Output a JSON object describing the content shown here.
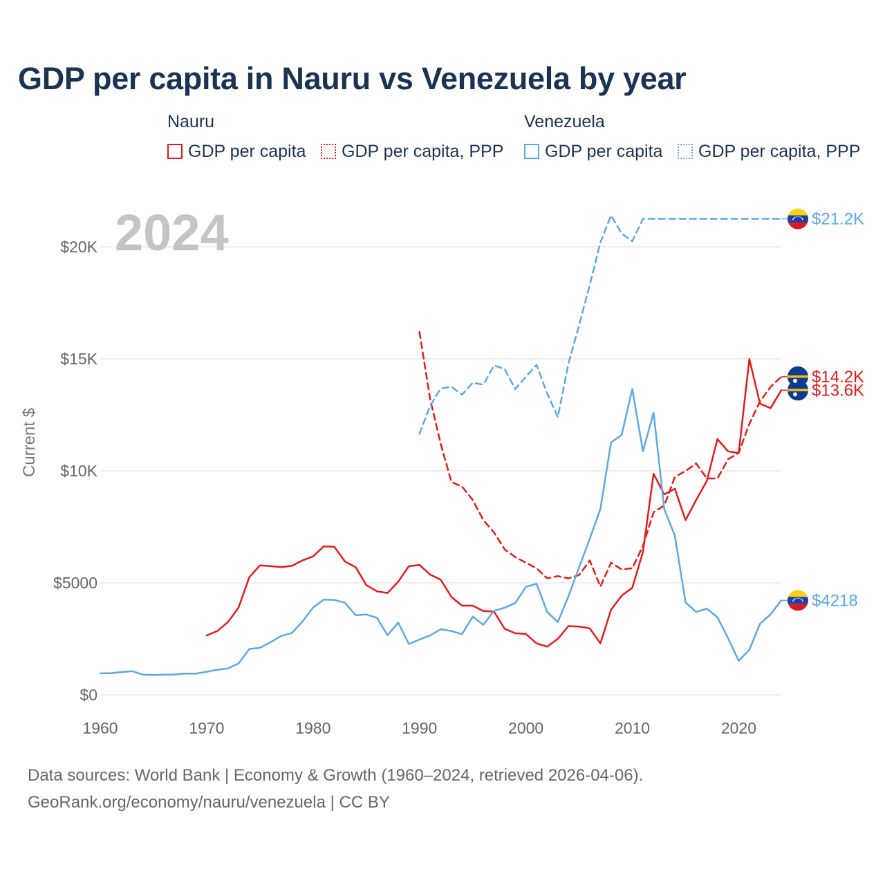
{
  "title": "GDP per capita in Nauru vs Venezuela by year",
  "legend": {
    "groups": [
      {
        "label": "Nauru",
        "items": [
          {
            "label": "GDP per capita",
            "color": "#e8191b",
            "style": "solid"
          },
          {
            "label": "GDP per capita, PPP",
            "color": "#e8191b",
            "style": "dashed"
          }
        ]
      },
      {
        "label": "Venezuela",
        "items": [
          {
            "label": "GDP per capita",
            "color": "#5ea7e6",
            "style": "solid"
          },
          {
            "label": "GDP per capita, PPP",
            "color": "#5ea7e6",
            "style": "dashed"
          }
        ]
      }
    ]
  },
  "footer": {
    "line1": "Data sources: World Bank | Economy & Growth (1960–2024, retrieved 2026-04-06).",
    "line2": "GeoRank.org/economy/nauru/venezuela | CC BY"
  },
  "chart_data": {
    "type": "line",
    "year_watermark": "2024",
    "ylabel": "Current $",
    "xlabel": "",
    "xlim": [
      1960,
      2024
    ],
    "ylim": [
      0,
      20000
    ],
    "x_ticks": [
      1960,
      1970,
      1980,
      1990,
      2000,
      2010,
      2020
    ],
    "y_ticks": [
      {
        "value": 0,
        "label": "$0"
      },
      {
        "value": 5000,
        "label": "$5000"
      },
      {
        "value": 10000,
        "label": "$10K"
      },
      {
        "value": 15000,
        "label": "$15K"
      },
      {
        "value": 20000,
        "label": "$20K"
      }
    ],
    "grid": true,
    "series": [
      {
        "name": "Nauru — GDP per capita",
        "country": "Nauru",
        "metric": "GDP per capita",
        "color": "#e8191b",
        "dashed": false,
        "end_label": "$13.6K",
        "flag": "nauru",
        "label_offset": 0,
        "x": [
          1970,
          1971,
          1972,
          1973,
          1974,
          1975,
          1976,
          1977,
          1978,
          1979,
          1980,
          1981,
          1982,
          1983,
          1984,
          1985,
          1986,
          1987,
          1988,
          1989,
          1990,
          1991,
          1992,
          1993,
          1994,
          1995,
          1996,
          1997,
          1998,
          1999,
          2000,
          2001,
          2002,
          2003,
          2004,
          2005,
          2006,
          2007,
          2008,
          2009,
          2010,
          2011,
          2012,
          2013,
          2014,
          2015,
          2016,
          2017,
          2018,
          2019,
          2020,
          2021,
          2022,
          2023,
          2024
        ],
        "values": [
          2650,
          2850,
          3250,
          3900,
          5250,
          5780,
          5750,
          5700,
          5760,
          6000,
          6180,
          6630,
          6610,
          5950,
          5700,
          4900,
          4620,
          4550,
          5050,
          5740,
          5800,
          5370,
          5140,
          4370,
          3980,
          3980,
          3740,
          3720,
          2950,
          2750,
          2720,
          2300,
          2150,
          2500,
          3070,
          3050,
          2970,
          2300,
          3800,
          4430,
          4780,
          6380,
          9870,
          8950,
          9200,
          7800,
          8700,
          9550,
          11420,
          10870,
          10800,
          14990,
          13000,
          12800,
          13600
        ]
      },
      {
        "name": "Nauru — GDP per capita, PPP",
        "country": "Nauru",
        "metric": "GDP per capita, PPP",
        "color": "#e8191b",
        "dashed": true,
        "end_label": "$14.2K",
        "flag": "nauru",
        "label_offset": 0,
        "x": [
          1990,
          1991,
          1992,
          1993,
          1994,
          1995,
          1996,
          1997,
          1998,
          1999,
          2000,
          2001,
          2002,
          2003,
          2004,
          2005,
          2006,
          2007,
          2008,
          2009,
          2010,
          2011,
          2012,
          2013,
          2014,
          2015,
          2016,
          2017,
          2018,
          2019,
          2020,
          2021,
          2022,
          2023,
          2024
        ],
        "values": [
          16200,
          13200,
          11200,
          9500,
          9300,
          8700,
          7800,
          7250,
          6500,
          6150,
          5900,
          5650,
          5200,
          5300,
          5200,
          5350,
          6000,
          4830,
          5900,
          5600,
          5650,
          6650,
          8150,
          8450,
          9730,
          9990,
          10330,
          9660,
          9660,
          10520,
          10800,
          12100,
          13100,
          13750,
          14200
        ]
      },
      {
        "name": "Venezuela — GDP per capita",
        "country": "Venezuela",
        "metric": "GDP per capita",
        "color": "#5ea7e6",
        "dashed": false,
        "end_label": "$4218",
        "flag": "venezuela",
        "label_offset": 0,
        "x": [
          1960,
          1961,
          1962,
          1963,
          1964,
          1965,
          1966,
          1967,
          1968,
          1969,
          1970,
          1971,
          1972,
          1973,
          1974,
          1975,
          1976,
          1977,
          1978,
          1979,
          1980,
          1981,
          1982,
          1983,
          1984,
          1985,
          1986,
          1987,
          1988,
          1989,
          1990,
          1991,
          1992,
          1993,
          1994,
          1995,
          1996,
          1997,
          1998,
          1999,
          2000,
          2001,
          2002,
          2003,
          2004,
          2005,
          2006,
          2007,
          2008,
          2009,
          2010,
          2011,
          2012,
          2013,
          2014,
          2015,
          2016,
          2017,
          2018,
          2019,
          2020,
          2021,
          2022,
          2023,
          2024
        ],
        "values": [
          960,
          970,
          1020,
          1060,
          900,
          890,
          900,
          910,
          950,
          950,
          1030,
          1120,
          1180,
          1400,
          2050,
          2100,
          2350,
          2630,
          2760,
          3270,
          3900,
          4250,
          4240,
          4110,
          3560,
          3590,
          3440,
          2660,
          3230,
          2270,
          2470,
          2650,
          2930,
          2850,
          2710,
          3490,
          3130,
          3750,
          3890,
          4100,
          4820,
          4960,
          3700,
          3250,
          4400,
          5690,
          6970,
          8300,
          11270,
          11600,
          13660,
          10870,
          12600,
          8300,
          7100,
          4130,
          3700,
          3850,
          3460,
          2530,
          1520,
          2010,
          3170,
          3600,
          4218
        ]
      },
      {
        "name": "Venezuela — GDP per capita, PPP",
        "country": "Venezuela",
        "metric": "GDP per capita, PPP",
        "color": "#5ea7e6",
        "dashed": true,
        "end_label": "$21.2K",
        "flag": "venezuela",
        "label_offset": 0,
        "x": [
          1990,
          1991,
          1992,
          1993,
          1994,
          1995,
          1996,
          1997,
          1998,
          1999,
          2000,
          2001,
          2002,
          2003,
          2004,
          2005,
          2006,
          2007,
          2008,
          2009,
          2010,
          2011,
          2012,
          2013,
          2014,
          2015,
          2016,
          2017,
          2018,
          2019,
          2020,
          2021,
          2022,
          2023,
          2024
        ],
        "values": [
          11650,
          12900,
          13680,
          13750,
          13400,
          13930,
          13850,
          14700,
          14550,
          13650,
          14200,
          14730,
          13450,
          12400,
          14800,
          16500,
          18300,
          20200,
          21400,
          20600,
          20250,
          21250,
          21250,
          21250,
          21250,
          21250,
          21250,
          21250,
          21250,
          21250,
          21250,
          21250,
          21250,
          21250,
          21250
        ]
      }
    ]
  }
}
